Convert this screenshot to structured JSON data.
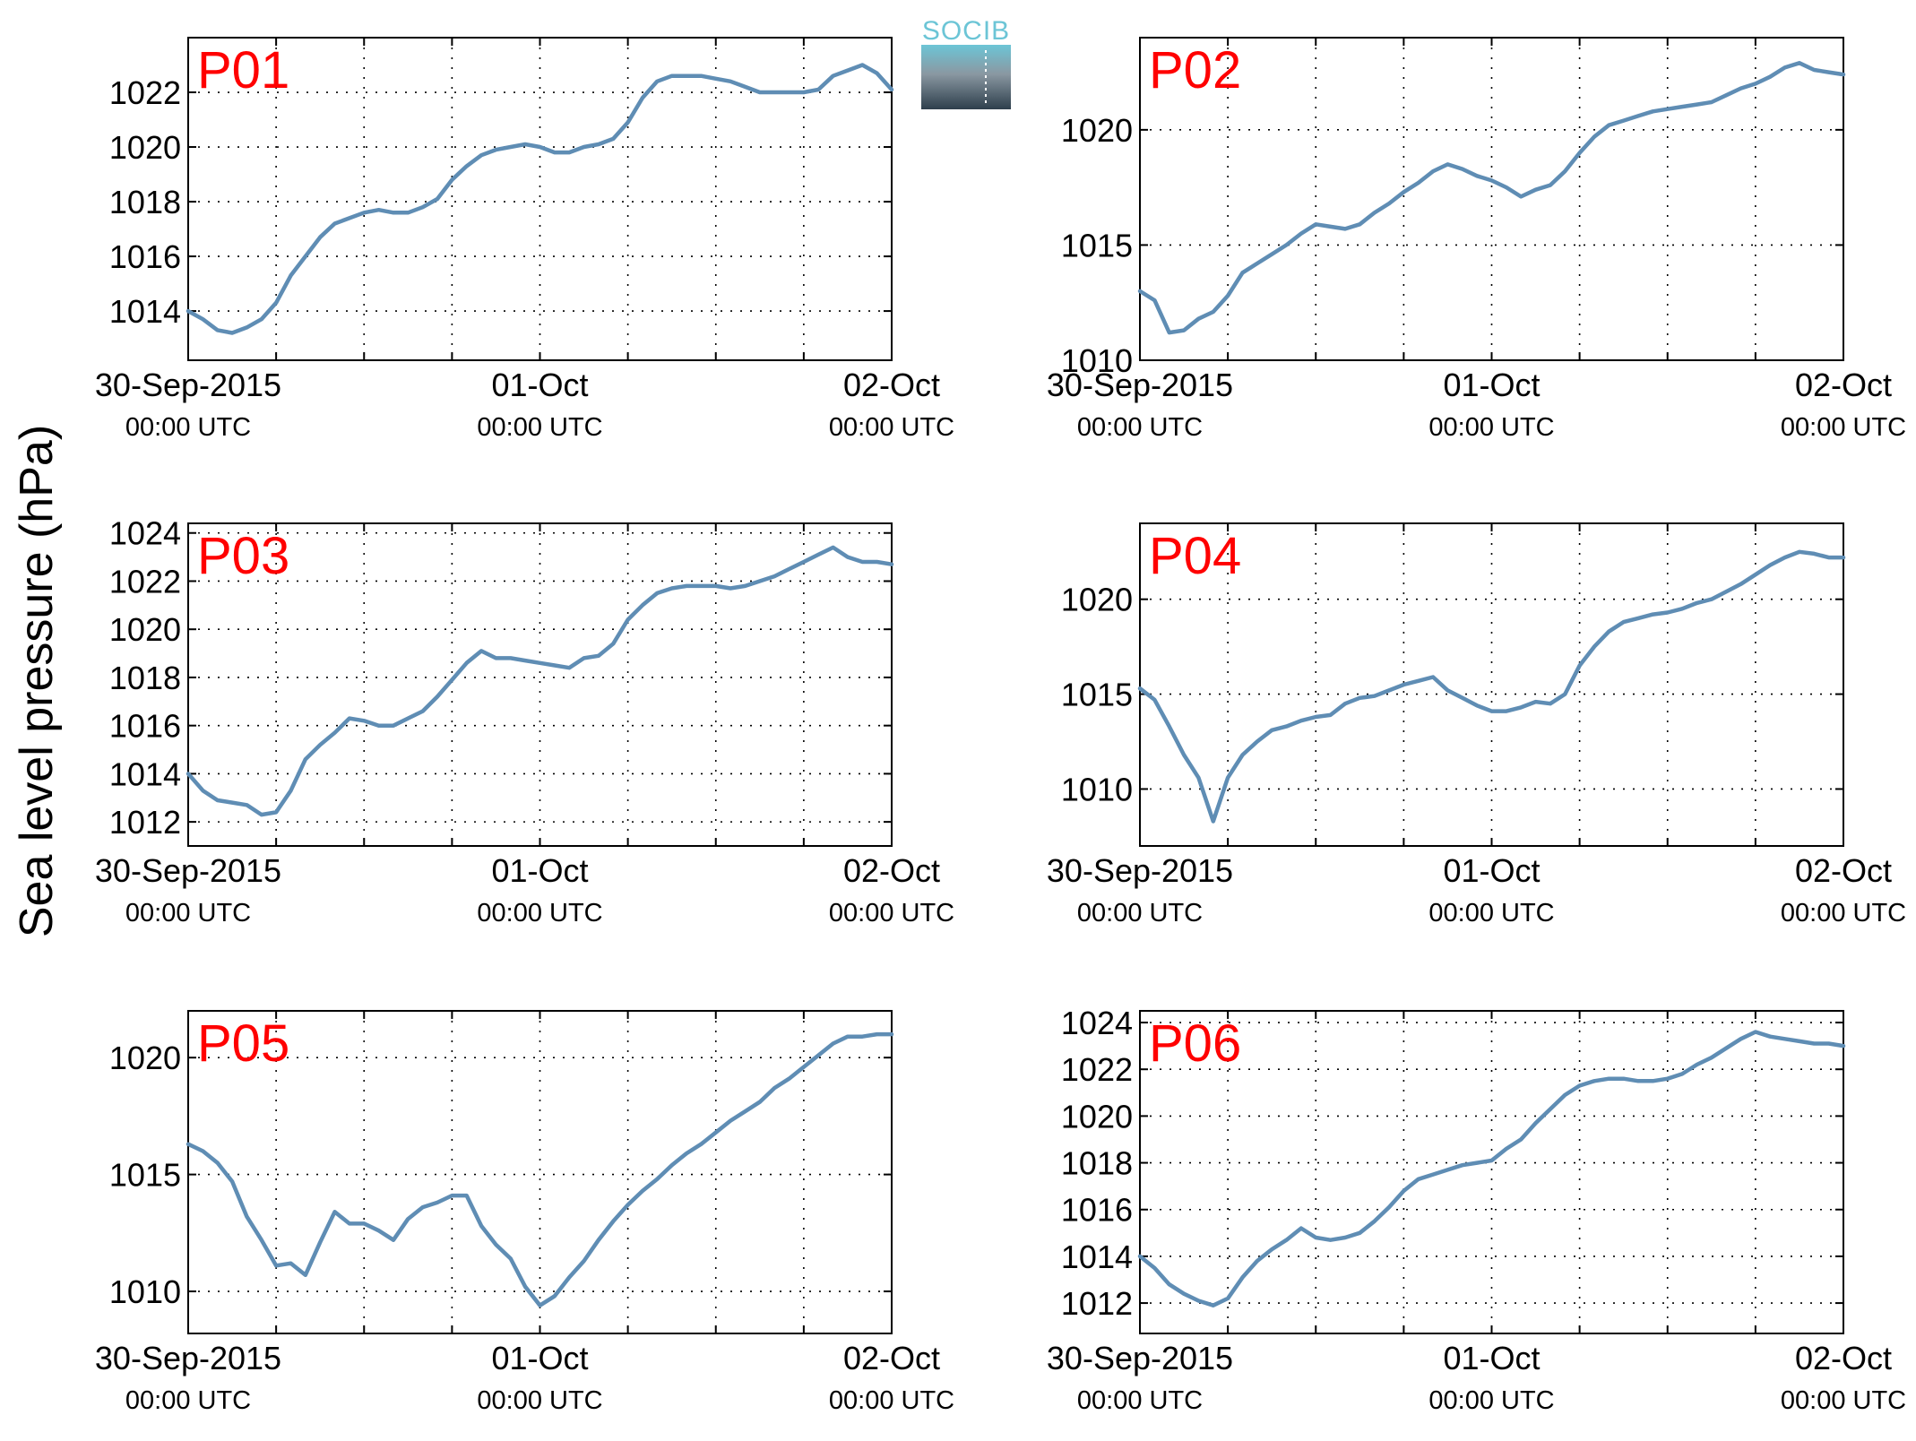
{
  "figure": {
    "ylabel": "Sea level pressure (hPa)",
    "logo_text": "SOCIB",
    "colors": {
      "line": "#5f8db4",
      "label": "#ff0000",
      "logo_top": "#6cc5d6",
      "logo_bottom": "#2e3f4c"
    }
  },
  "x_ticks": [
    {
      "date": "30-Sep-2015",
      "time": "00:00 UTC"
    },
    {
      "date": "01-Oct",
      "time": "00:00 UTC"
    },
    {
      "date": "02-Oct",
      "time": "00:00 UTC"
    }
  ],
  "chart_data": [
    {
      "type": "line",
      "label": "P01",
      "x_hours_from": "30-Sep-2015 00:00 UTC",
      "xlim": [
        0,
        48
      ],
      "ylim": [
        1012.2,
        1024
      ],
      "yticks": [
        1014,
        1016,
        1018,
        1020,
        1022
      ],
      "grid": true,
      "x": [
        0,
        1,
        2,
        3,
        4,
        5,
        6,
        7,
        8,
        9,
        10,
        11,
        12,
        13,
        14,
        15,
        16,
        17,
        18,
        19,
        20,
        21,
        22,
        23,
        24,
        25,
        26,
        27,
        28,
        29,
        30,
        31,
        32,
        33,
        34,
        35,
        36,
        37,
        38,
        39,
        40,
        41,
        42,
        43,
        44,
        45,
        46,
        47,
        48
      ],
      "y": [
        1014.0,
        1013.7,
        1013.3,
        1013.2,
        1013.4,
        1013.7,
        1014.3,
        1015.3,
        1016.0,
        1016.7,
        1017.2,
        1017.4,
        1017.6,
        1017.7,
        1017.6,
        1017.6,
        1017.8,
        1018.1,
        1018.8,
        1019.3,
        1019.7,
        1019.9,
        1020.0,
        1020.1,
        1020.0,
        1019.8,
        1019.8,
        1020.0,
        1020.1,
        1020.3,
        1020.9,
        1021.8,
        1022.4,
        1022.6,
        1022.6,
        1022.6,
        1022.5,
        1022.4,
        1022.2,
        1022.0,
        1022.0,
        1022.0,
        1022.0,
        1022.1,
        1022.6,
        1022.8,
        1023.0,
        1022.7,
        1022.1
      ]
    },
    {
      "type": "line",
      "label": "P02",
      "x_hours_from": "30-Sep-2015 00:00 UTC",
      "xlim": [
        0,
        48
      ],
      "ylim": [
        1010,
        1024
      ],
      "yticks": [
        1010,
        1015,
        1020
      ],
      "grid": true,
      "x": [
        0,
        1,
        2,
        3,
        4,
        5,
        6,
        7,
        8,
        9,
        10,
        11,
        12,
        13,
        14,
        15,
        16,
        17,
        18,
        19,
        20,
        21,
        22,
        23,
        24,
        25,
        26,
        27,
        28,
        29,
        30,
        31,
        32,
        33,
        34,
        35,
        36,
        37,
        38,
        39,
        40,
        41,
        42,
        43,
        44,
        45,
        46,
        47,
        48
      ],
      "y": [
        1013.0,
        1012.6,
        1011.2,
        1011.3,
        1011.8,
        1012.1,
        1012.8,
        1013.8,
        1014.2,
        1014.6,
        1015.0,
        1015.5,
        1015.9,
        1015.8,
        1015.7,
        1015.9,
        1016.4,
        1016.8,
        1017.3,
        1017.7,
        1018.2,
        1018.5,
        1018.3,
        1018.0,
        1017.8,
        1017.5,
        1017.1,
        1017.4,
        1017.6,
        1018.2,
        1019.0,
        1019.7,
        1020.2,
        1020.4,
        1020.6,
        1020.8,
        1020.9,
        1021.0,
        1021.1,
        1021.2,
        1021.5,
        1021.8,
        1022.0,
        1022.3,
        1022.7,
        1022.9,
        1022.6,
        1022.5,
        1022.4
      ]
    },
    {
      "type": "line",
      "label": "P03",
      "x_hours_from": "30-Sep-2015 00:00 UTC",
      "xlim": [
        0,
        48
      ],
      "ylim": [
        1011,
        1024.4
      ],
      "yticks": [
        1012,
        1014,
        1016,
        1018,
        1020,
        1022,
        1024
      ],
      "grid": true,
      "x": [
        0,
        1,
        2,
        3,
        4,
        5,
        6,
        7,
        8,
        9,
        10,
        11,
        12,
        13,
        14,
        15,
        16,
        17,
        18,
        19,
        20,
        21,
        22,
        23,
        24,
        25,
        26,
        27,
        28,
        29,
        30,
        31,
        32,
        33,
        34,
        35,
        36,
        37,
        38,
        39,
        40,
        41,
        42,
        43,
        44,
        45,
        46,
        47,
        48
      ],
      "y": [
        1014.0,
        1013.3,
        1012.9,
        1012.8,
        1012.7,
        1012.3,
        1012.4,
        1013.3,
        1014.6,
        1015.2,
        1015.7,
        1016.3,
        1016.2,
        1016.0,
        1016.0,
        1016.3,
        1016.6,
        1017.2,
        1017.9,
        1018.6,
        1019.1,
        1018.8,
        1018.8,
        1018.7,
        1018.6,
        1018.5,
        1018.4,
        1018.8,
        1018.9,
        1019.4,
        1020.4,
        1021.0,
        1021.5,
        1021.7,
        1021.8,
        1021.8,
        1021.8,
        1021.7,
        1021.8,
        1022.0,
        1022.2,
        1022.5,
        1022.8,
        1023.1,
        1023.4,
        1023.0,
        1022.8,
        1022.8,
        1022.7
      ]
    },
    {
      "type": "line",
      "label": "P04",
      "x_hours_from": "30-Sep-2015 00:00 UTC",
      "xlim": [
        0,
        48
      ],
      "ylim": [
        1007,
        1024
      ],
      "yticks": [
        1010,
        1015,
        1020
      ],
      "grid": true,
      "x": [
        0,
        1,
        2,
        3,
        4,
        5,
        6,
        7,
        8,
        9,
        10,
        11,
        12,
        13,
        14,
        15,
        16,
        17,
        18,
        19,
        20,
        21,
        22,
        23,
        24,
        25,
        26,
        27,
        28,
        29,
        30,
        31,
        32,
        33,
        34,
        35,
        36,
        37,
        38,
        39,
        40,
        41,
        42,
        43,
        44,
        45,
        46,
        47,
        48
      ],
      "y": [
        1015.3,
        1014.7,
        1013.3,
        1011.8,
        1010.6,
        1008.3,
        1010.6,
        1011.8,
        1012.5,
        1013.1,
        1013.3,
        1013.6,
        1013.8,
        1013.9,
        1014.5,
        1014.8,
        1014.9,
        1015.2,
        1015.5,
        1015.7,
        1015.9,
        1015.2,
        1014.8,
        1014.4,
        1014.1,
        1014.1,
        1014.3,
        1014.6,
        1014.5,
        1015.0,
        1016.5,
        1017.5,
        1018.3,
        1018.8,
        1019.0,
        1019.2,
        1019.3,
        1019.5,
        1019.8,
        1020.0,
        1020.4,
        1020.8,
        1021.3,
        1021.8,
        1022.2,
        1022.5,
        1022.4,
        1022.2,
        1022.2
      ]
    },
    {
      "type": "line",
      "label": "P05",
      "x_hours_from": "30-Sep-2015 00:00 UTC",
      "xlim": [
        0,
        48
      ],
      "ylim": [
        1008.2,
        1022
      ],
      "yticks": [
        1010,
        1015,
        1020
      ],
      "grid": true,
      "x": [
        0,
        1,
        2,
        3,
        4,
        5,
        6,
        7,
        8,
        9,
        10,
        11,
        12,
        13,
        14,
        15,
        16,
        17,
        18,
        19,
        20,
        21,
        22,
        23,
        24,
        25,
        26,
        27,
        28,
        29,
        30,
        31,
        32,
        33,
        34,
        35,
        36,
        37,
        38,
        39,
        40,
        41,
        42,
        43,
        44,
        45,
        46,
        47,
        48
      ],
      "y": [
        1016.3,
        1016.0,
        1015.5,
        1014.7,
        1013.2,
        1012.2,
        1011.1,
        1011.2,
        1010.7,
        1012.1,
        1013.4,
        1012.9,
        1012.9,
        1012.6,
        1012.2,
        1013.1,
        1013.6,
        1013.8,
        1014.1,
        1014.1,
        1012.8,
        1012.0,
        1011.4,
        1010.2,
        1009.4,
        1009.8,
        1010.6,
        1011.3,
        1012.2,
        1013.0,
        1013.7,
        1014.3,
        1014.8,
        1015.4,
        1015.9,
        1016.3,
        1016.8,
        1017.3,
        1017.7,
        1018.1,
        1018.7,
        1019.1,
        1019.6,
        1020.1,
        1020.6,
        1020.9,
        1020.9,
        1021.0,
        1021.0
      ]
    },
    {
      "type": "line",
      "label": "P06",
      "x_hours_from": "30-Sep-2015 00:00 UTC",
      "xlim": [
        0,
        48
      ],
      "ylim": [
        1010.7,
        1024.5
      ],
      "yticks": [
        1012,
        1014,
        1016,
        1018,
        1020,
        1022,
        1024
      ],
      "grid": true,
      "x": [
        0,
        1,
        2,
        3,
        4,
        5,
        6,
        7,
        8,
        9,
        10,
        11,
        12,
        13,
        14,
        15,
        16,
        17,
        18,
        19,
        20,
        21,
        22,
        23,
        24,
        25,
        26,
        27,
        28,
        29,
        30,
        31,
        32,
        33,
        34,
        35,
        36,
        37,
        38,
        39,
        40,
        41,
        42,
        43,
        44,
        45,
        46,
        47,
        48
      ],
      "y": [
        1014.0,
        1013.5,
        1012.8,
        1012.4,
        1012.1,
        1011.9,
        1012.2,
        1013.1,
        1013.8,
        1014.3,
        1014.7,
        1015.2,
        1014.8,
        1014.7,
        1014.8,
        1015.0,
        1015.5,
        1016.1,
        1016.8,
        1017.3,
        1017.5,
        1017.7,
        1017.9,
        1018.0,
        1018.1,
        1018.6,
        1019.0,
        1019.7,
        1020.3,
        1020.9,
        1021.3,
        1021.5,
        1021.6,
        1021.6,
        1021.5,
        1021.5,
        1021.6,
        1021.8,
        1022.2,
        1022.5,
        1022.9,
        1023.3,
        1023.6,
        1023.4,
        1023.3,
        1023.2,
        1023.1,
        1023.1,
        1023.0
      ]
    }
  ]
}
